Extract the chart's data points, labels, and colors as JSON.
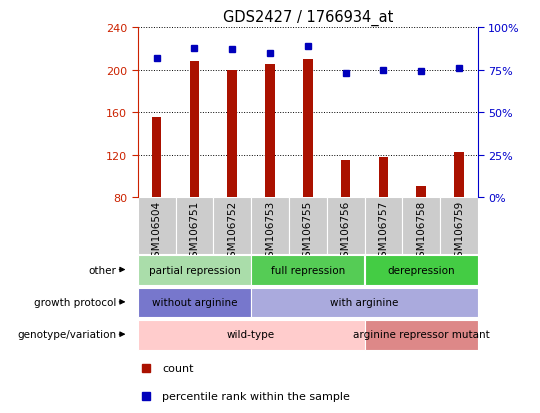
{
  "title": "GDS2427 / 1766934_at",
  "samples": [
    "GSM106504",
    "GSM106751",
    "GSM106752",
    "GSM106753",
    "GSM106755",
    "GSM106756",
    "GSM106757",
    "GSM106758",
    "GSM106759"
  ],
  "counts": [
    155,
    208,
    200,
    205,
    210,
    115,
    118,
    90,
    122
  ],
  "percentile_ranks": [
    82,
    88,
    87,
    85,
    89,
    73,
    75,
    74,
    76
  ],
  "ylim_left": [
    80,
    240
  ],
  "ylim_right": [
    0,
    100
  ],
  "yticks_left": [
    80,
    120,
    160,
    200,
    240
  ],
  "yticks_right": [
    0,
    25,
    50,
    75,
    100
  ],
  "bar_color": "#aa1100",
  "dot_color": "#0000bb",
  "left_tick_color": "#cc2200",
  "right_tick_color": "#0000cc",
  "xtick_bg_color": "#cccccc",
  "annotation_rows": [
    {
      "label": "other",
      "segments": [
        {
          "text": "partial repression",
          "start": 0,
          "end": 3,
          "color": "#aaddaa"
        },
        {
          "text": "full repression",
          "start": 3,
          "end": 6,
          "color": "#55cc55"
        },
        {
          "text": "derepression",
          "start": 6,
          "end": 9,
          "color": "#44cc44"
        }
      ]
    },
    {
      "label": "growth protocol",
      "segments": [
        {
          "text": "without arginine",
          "start": 0,
          "end": 3,
          "color": "#7777cc"
        },
        {
          "text": "with arginine",
          "start": 3,
          "end": 9,
          "color": "#aaaadd"
        }
      ]
    },
    {
      "label": "genotype/variation",
      "segments": [
        {
          "text": "wild-type",
          "start": 0,
          "end": 6,
          "color": "#ffcccc"
        },
        {
          "text": "arginine repressor mutant",
          "start": 6,
          "end": 9,
          "color": "#dd8888"
        }
      ]
    }
  ]
}
